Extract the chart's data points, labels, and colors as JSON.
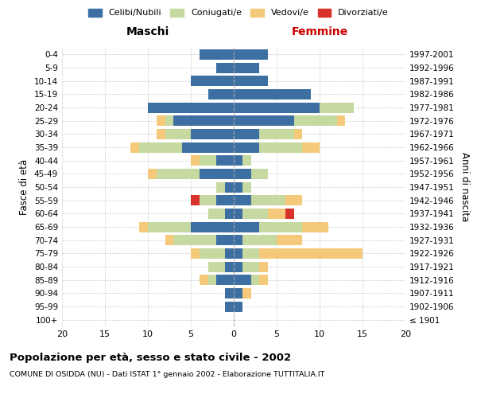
{
  "age_groups": [
    "100+",
    "95-99",
    "90-94",
    "85-89",
    "80-84",
    "75-79",
    "70-74",
    "65-69",
    "60-64",
    "55-59",
    "50-54",
    "45-49",
    "40-44",
    "35-39",
    "30-34",
    "25-29",
    "20-24",
    "15-19",
    "10-14",
    "5-9",
    "0-4"
  ],
  "birth_years": [
    "≤ 1901",
    "1902-1906",
    "1907-1911",
    "1912-1916",
    "1917-1921",
    "1922-1926",
    "1927-1931",
    "1932-1936",
    "1937-1941",
    "1942-1946",
    "1947-1951",
    "1952-1956",
    "1957-1961",
    "1962-1966",
    "1967-1971",
    "1972-1976",
    "1977-1981",
    "1982-1986",
    "1987-1991",
    "1992-1996",
    "1997-2001"
  ],
  "males": {
    "celibi": [
      0,
      1,
      1,
      2,
      1,
      1,
      2,
      5,
      1,
      2,
      1,
      4,
      2,
      6,
      5,
      7,
      10,
      3,
      5,
      2,
      4
    ],
    "coniugati": [
      0,
      0,
      0,
      1,
      2,
      3,
      5,
      5,
      2,
      2,
      1,
      5,
      2,
      5,
      3,
      1,
      0,
      0,
      0,
      0,
      0
    ],
    "vedovi": [
      0,
      0,
      0,
      1,
      0,
      1,
      1,
      1,
      0,
      0,
      0,
      1,
      1,
      1,
      1,
      1,
      0,
      0,
      0,
      0,
      0
    ],
    "divorziati": [
      0,
      0,
      0,
      0,
      0,
      0,
      0,
      0,
      0,
      1,
      0,
      0,
      0,
      0,
      0,
      0,
      0,
      0,
      0,
      0,
      0
    ]
  },
  "females": {
    "nubili": [
      0,
      1,
      1,
      2,
      1,
      1,
      1,
      3,
      1,
      2,
      1,
      2,
      1,
      3,
      3,
      7,
      10,
      9,
      4,
      3,
      4
    ],
    "coniugate": [
      0,
      0,
      0,
      1,
      2,
      2,
      4,
      5,
      3,
      4,
      1,
      2,
      1,
      5,
      4,
      5,
      4,
      0,
      0,
      0,
      0
    ],
    "vedove": [
      0,
      0,
      1,
      1,
      1,
      12,
      3,
      3,
      2,
      2,
      0,
      0,
      0,
      2,
      1,
      1,
      0,
      0,
      0,
      0,
      0
    ],
    "divorziate": [
      0,
      0,
      0,
      0,
      0,
      0,
      0,
      0,
      1,
      0,
      0,
      0,
      0,
      0,
      0,
      0,
      0,
      0,
      0,
      0,
      0
    ]
  },
  "colors": {
    "celibi_nubili": "#3e6fa3",
    "coniugati": "#c5d9a0",
    "vedovi": "#f5c97a",
    "divorziati": "#d9312b"
  },
  "xlim": [
    -20,
    20
  ],
  "xticks": [
    -20,
    -15,
    -10,
    -5,
    0,
    5,
    10,
    15,
    20
  ],
  "xticklabels": [
    "20",
    "15",
    "10",
    "5",
    "0",
    "5",
    "10",
    "15",
    "20"
  ],
  "title": "Popolazione per età, sesso e stato civile - 2002",
  "subtitle": "COMUNE DI OSIDDA (NU) - Dati ISTAT 1° gennaio 2002 - Elaborazione TUTTITALIA.IT",
  "ylabel_left": "Fasce di età",
  "ylabel_right": "Anni di nascita",
  "label_maschi": "Maschi",
  "label_femmine": "Femmine",
  "legend_labels": [
    "Celibi/Nubili",
    "Coniugati/e",
    "Vedovi/e",
    "Divorziati/e"
  ],
  "background_color": "#ffffff",
  "grid_color": "#cccccc"
}
